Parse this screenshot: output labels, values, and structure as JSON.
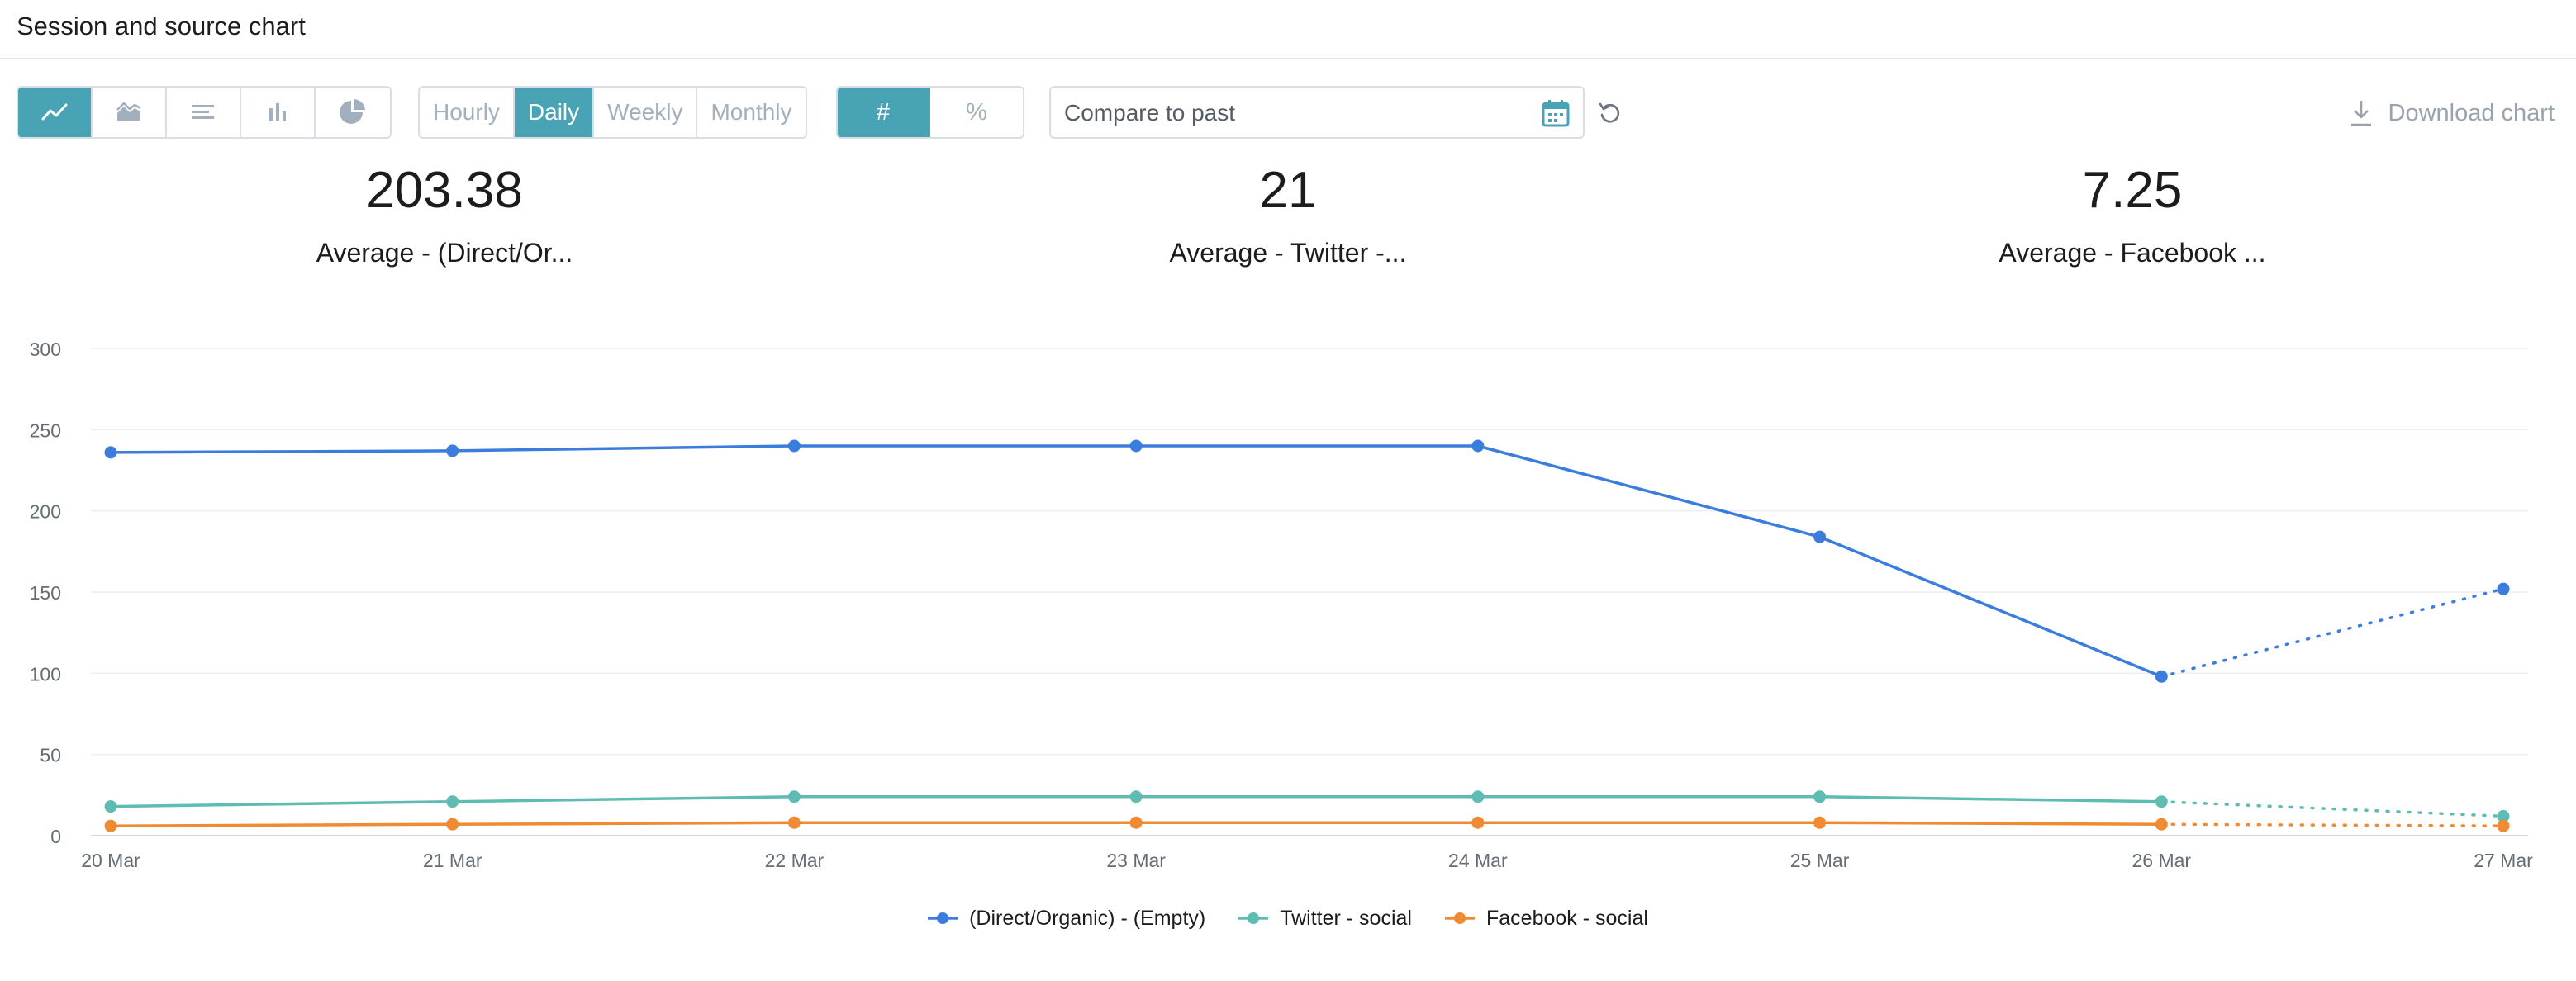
{
  "page": {
    "title": "Session and source chart"
  },
  "toolbar": {
    "chart_types": [
      {
        "icon": "line-chart-icon",
        "active": true
      },
      {
        "icon": "area-chart-icon",
        "active": false
      },
      {
        "icon": "horizontal-bar-chart-icon",
        "active": false
      },
      {
        "icon": "bar-chart-icon",
        "active": false
      },
      {
        "icon": "pie-chart-icon",
        "active": false
      }
    ],
    "intervals": [
      {
        "label": "Hourly",
        "active": false
      },
      {
        "label": "Daily",
        "active": true
      },
      {
        "label": "Weekly",
        "active": false
      },
      {
        "label": "Monthly",
        "active": false
      }
    ],
    "modes": [
      {
        "label": "#",
        "active": true
      },
      {
        "label": "%",
        "active": false
      }
    ],
    "compare": {
      "placeholder": "Compare to past",
      "value": ""
    },
    "download_label": "Download chart",
    "accent_color": "#48a4b4"
  },
  "stats": [
    {
      "value": "203.38",
      "label": "Average - (Direct/Or..."
    },
    {
      "value": "21",
      "label": "Average - Twitter -..."
    },
    {
      "value": "7.25",
      "label": "Average - Facebook ..."
    }
  ],
  "chart_data": {
    "type": "line",
    "x": [
      "20 Mar",
      "21 Mar",
      "22 Mar",
      "23 Mar",
      "24 Mar",
      "25 Mar",
      "26 Mar",
      "27 Mar"
    ],
    "ylim": [
      0,
      300
    ],
    "yticks": [
      0,
      50,
      100,
      150,
      200,
      250,
      300
    ],
    "grid": true,
    "legend": "bottom-center",
    "projected_from_index": 6,
    "series": [
      {
        "name": "(Direct/Organic) - (Empty)",
        "color": "#3b7ddd",
        "values": [
          236,
          237,
          240,
          240,
          240,
          184,
          98,
          152
        ]
      },
      {
        "name": "Twitter - social",
        "color": "#5fbcb2",
        "values": [
          18,
          21,
          24,
          24,
          24,
          24,
          21,
          12
        ]
      },
      {
        "name": "Facebook - social",
        "color": "#f08a33",
        "values": [
          6,
          7,
          8,
          8,
          8,
          8,
          7,
          6
        ]
      }
    ]
  }
}
